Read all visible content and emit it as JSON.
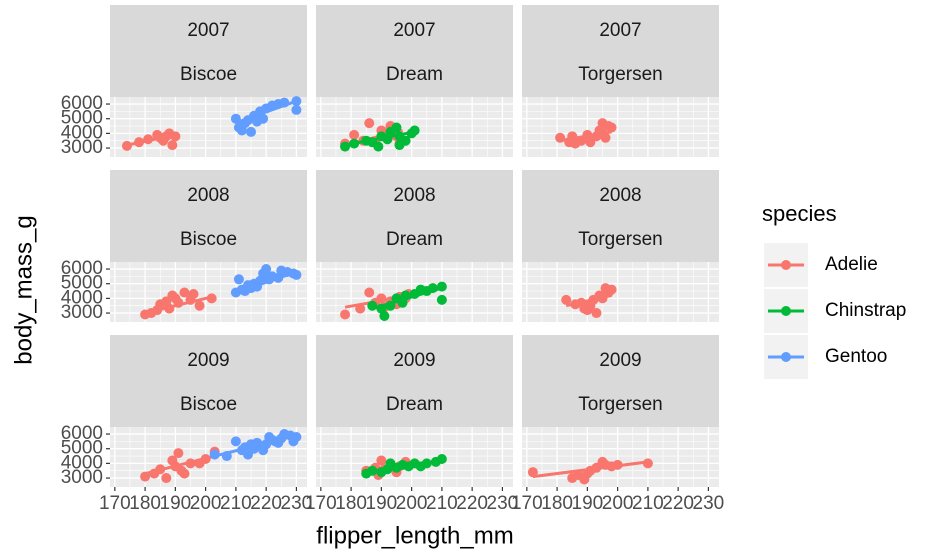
{
  "chart_data": {
    "type": "scatter",
    "x_label": "flipper_length_mm",
    "y_label": "body_mass_g",
    "legend_title": "species",
    "species": [
      {
        "name": "Adelie",
        "color": "#f8766d"
      },
      {
        "name": "Chinstrap",
        "color": "#00ba38"
      },
      {
        "name": "Gentoo",
        "color": "#619cff"
      }
    ],
    "xlim": [
      168.4,
      233.5
    ],
    "xticks": [
      170,
      180,
      190,
      200,
      210,
      220,
      230
    ],
    "ylim": [
      2390,
      6480
    ],
    "yticks": [
      3000,
      4000,
      5000,
      6000
    ],
    "grid": true,
    "panels": [
      {
        "year": 2007,
        "island": "Biscoe",
        "series": [
          {
            "name": "Adelie",
            "x": [
              174,
              178,
              181,
              184,
              185,
              186,
              187,
              188,
              189,
              190
            ],
            "values": [
              3150,
              3400,
              3600,
              3900,
              3700,
              3500,
              3800,
              4000,
              3200,
              3800
            ],
            "fit": {
              "x": [
                174,
                190
              ],
              "values": [
                3200,
                3900
              ]
            }
          },
          {
            "name": "Gentoo",
            "x": [
              210,
              211,
              212,
              213,
              214,
              215,
              216,
              217,
              218,
              219,
              220,
              222,
              224,
              226,
              230,
              230
            ],
            "values": [
              5000,
              4400,
              4200,
              4700,
              4900,
              4100,
              5200,
              4800,
              5500,
              5000,
              5700,
              5900,
              6000,
              6100,
              6200,
              5600
            ],
            "fit": {
              "x": [
                211,
                230
              ],
              "values": [
                4800,
                6200
              ]
            }
          }
        ]
      },
      {
        "year": 2007,
        "island": "Dream",
        "series": [
          {
            "name": "Adelie",
            "x": [
              178,
              181,
              184,
              186,
              188,
              190,
              192,
              193,
              195,
              196
            ],
            "values": [
              3300,
              3900,
              3500,
              4700,
              3400,
              4200,
              3600,
              4500,
              3800,
              3300
            ],
            "fit": {
              "x": [
                178,
                197
              ],
              "values": [
                3200,
                4200
              ]
            }
          },
          {
            "name": "Chinstrap",
            "x": [
              178,
              181,
              185,
              187,
              189,
              190,
              192,
              193,
              195,
              196,
              198,
              200,
              201,
              196
            ],
            "values": [
              3100,
              3300,
              3500,
              3400,
              3100,
              3800,
              3600,
              4100,
              4400,
              3800,
              3500,
              4000,
              4200,
              3200
            ],
            "fit": {
              "x": [
                178,
                201
              ],
              "values": [
                3200,
                4100
              ]
            }
          }
        ]
      },
      {
        "year": 2007,
        "island": "Torgersen",
        "series": [
          {
            "name": "Adelie",
            "x": [
              181,
              184,
              185,
              186,
              188,
              190,
              191,
              193,
              194,
              195,
              196,
              197,
              198,
              195
            ],
            "values": [
              3700,
              3400,
              3800,
              3300,
              3500,
              3900,
              3400,
              3800,
              4200,
              4700,
              3700,
              4500,
              4400,
              4000
            ],
            "fit": {
              "x": [
                181,
                198
              ],
              "values": [
                3500,
                4100
              ]
            }
          }
        ]
      },
      {
        "year": 2008,
        "island": "Biscoe",
        "series": [
          {
            "name": "Adelie",
            "x": [
              180,
              182,
              184,
              185,
              187,
              188,
              189,
              190,
              191,
              193,
              195,
              196,
              198,
              202
            ],
            "values": [
              2900,
              3000,
              3200,
              3600,
              3800,
              3300,
              4200,
              4000,
              3700,
              4400,
              3900,
              4300,
              3500,
              4000
            ],
            "fit": {
              "x": [
                180,
                202
              ],
              "values": [
                3000,
                4100
              ]
            }
          },
          {
            "name": "Gentoo",
            "x": [
              210,
              211,
              212,
              213,
              214,
              215,
              216,
              217,
              218,
              219,
              220,
              221,
              222,
              224,
              225,
              227,
              229,
              230
            ],
            "values": [
              4400,
              5300,
              4600,
              4500,
              4900,
              4700,
              5000,
              4800,
              5200,
              5700,
              6000,
              5300,
              5500,
              5400,
              5900,
              5800,
              5700,
              5600
            ],
            "fit": {
              "x": [
                210,
                230
              ],
              "values": [
                4400,
                5800
              ]
            }
          }
        ]
      },
      {
        "year": 2008,
        "island": "Dream",
        "series": [
          {
            "name": "Adelie",
            "x": [
              178,
              183,
              186,
              188,
              190,
              191,
              193,
              195,
              196,
              198,
              199
            ],
            "values": [
              2900,
              3300,
              4400,
              3700,
              4000,
              3400,
              3800,
              3600,
              4100,
              4000,
              4300
            ],
            "fit": {
              "x": [
                178,
                200
              ],
              "values": [
                3400,
                4200
              ]
            }
          },
          {
            "name": "Chinstrap",
            "x": [
              187,
              190,
              191,
              193,
              195,
              197,
              198,
              201,
              203,
              205,
              207,
              210,
              210
            ],
            "values": [
              3500,
              3300,
              2800,
              3500,
              4000,
              3700,
              4200,
              4300,
              4600,
              4500,
              4700,
              4800,
              3900
            ],
            "fit": {
              "x": [
                187,
                210
              ],
              "values": [
                3300,
                4700
              ]
            }
          }
        ]
      },
      {
        "year": 2008,
        "island": "Torgersen",
        "series": [
          {
            "name": "Adelie",
            "x": [
              183,
              186,
              188,
              189,
              190,
              191,
              192,
              194,
              195,
              196,
              197,
              198,
              193
            ],
            "values": [
              3900,
              3600,
              3700,
              3300,
              3200,
              3500,
              3900,
              4200,
              4000,
              4700,
              4400,
              4600,
              3000
            ],
            "fit": {
              "x": [
                183,
                198
              ],
              "values": [
                3500,
                4200
              ]
            }
          }
        ]
      },
      {
        "year": 2009,
        "island": "Biscoe",
        "series": [
          {
            "name": "Adelie",
            "x": [
              180,
              183,
              185,
              187,
              189,
              190,
              191,
              192,
              193,
              195,
              198,
              200,
              203
            ],
            "values": [
              3100,
              3300,
              3600,
              3000,
              4200,
              3800,
              4700,
              3500,
              3300,
              4000,
              4000,
              4300,
              4800
            ],
            "fit": {
              "x": [
                180,
                203
              ],
              "values": [
                3300,
                4500
              ]
            }
          },
          {
            "name": "Gentoo",
            "x": [
              203,
              207,
              210,
              212,
              213,
              214,
              215,
              216,
              217,
              218,
              219,
              220,
              221,
              222,
              223,
              224,
              225,
              226,
              228,
              230,
              229
            ],
            "values": [
              4600,
              4500,
              5500,
              4900,
              5100,
              4600,
              5300,
              5000,
              5400,
              5200,
              4900,
              5300,
              5800,
              5600,
              5500,
              5400,
              5700,
              6000,
              5900,
              5800,
              5500
            ],
            "fit": {
              "x": [
                203,
                230
              ],
              "values": [
                4500,
                5900
              ]
            }
          }
        ]
      },
      {
        "year": 2009,
        "island": "Dream",
        "series": [
          {
            "name": "Adelie",
            "x": [
              185,
              188,
              189,
              190,
              191,
              193,
              195,
              196,
              198
            ],
            "values": [
              3500,
              3700,
              3200,
              4200,
              3600,
              3900,
              3400,
              3800,
              4100
            ],
            "fit": {
              "x": [
                185,
                198
              ],
              "values": [
                3300,
                3900
              ]
            }
          },
          {
            "name": "Chinstrap",
            "x": [
              185,
              187,
              190,
              192,
              193,
              195,
              197,
              199,
              201,
              203,
              205,
              208,
              210
            ],
            "values": [
              3300,
              3500,
              3400,
              3600,
              4000,
              3700,
              3900,
              3800,
              4000,
              3800,
              4000,
              4100,
              4300
            ],
            "fit": {
              "x": [
                185,
                210
              ],
              "values": [
                3400,
                4200
              ]
            }
          }
        ]
      },
      {
        "year": 2009,
        "island": "Torgersen",
        "series": [
          {
            "name": "Adelie",
            "x": [
              172,
              185,
              187,
              189,
              190,
              191,
              193,
              195,
              196,
              198,
              200,
              210
            ],
            "values": [
              3400,
              3000,
              3200,
              2900,
              3300,
              3500,
              3700,
              4100,
              3900,
              3800,
              3900,
              4000
            ],
            "fit": {
              "x": [
                172,
                210
              ],
              "values": [
                3100,
                4100
              ]
            }
          }
        ]
      }
    ]
  }
}
